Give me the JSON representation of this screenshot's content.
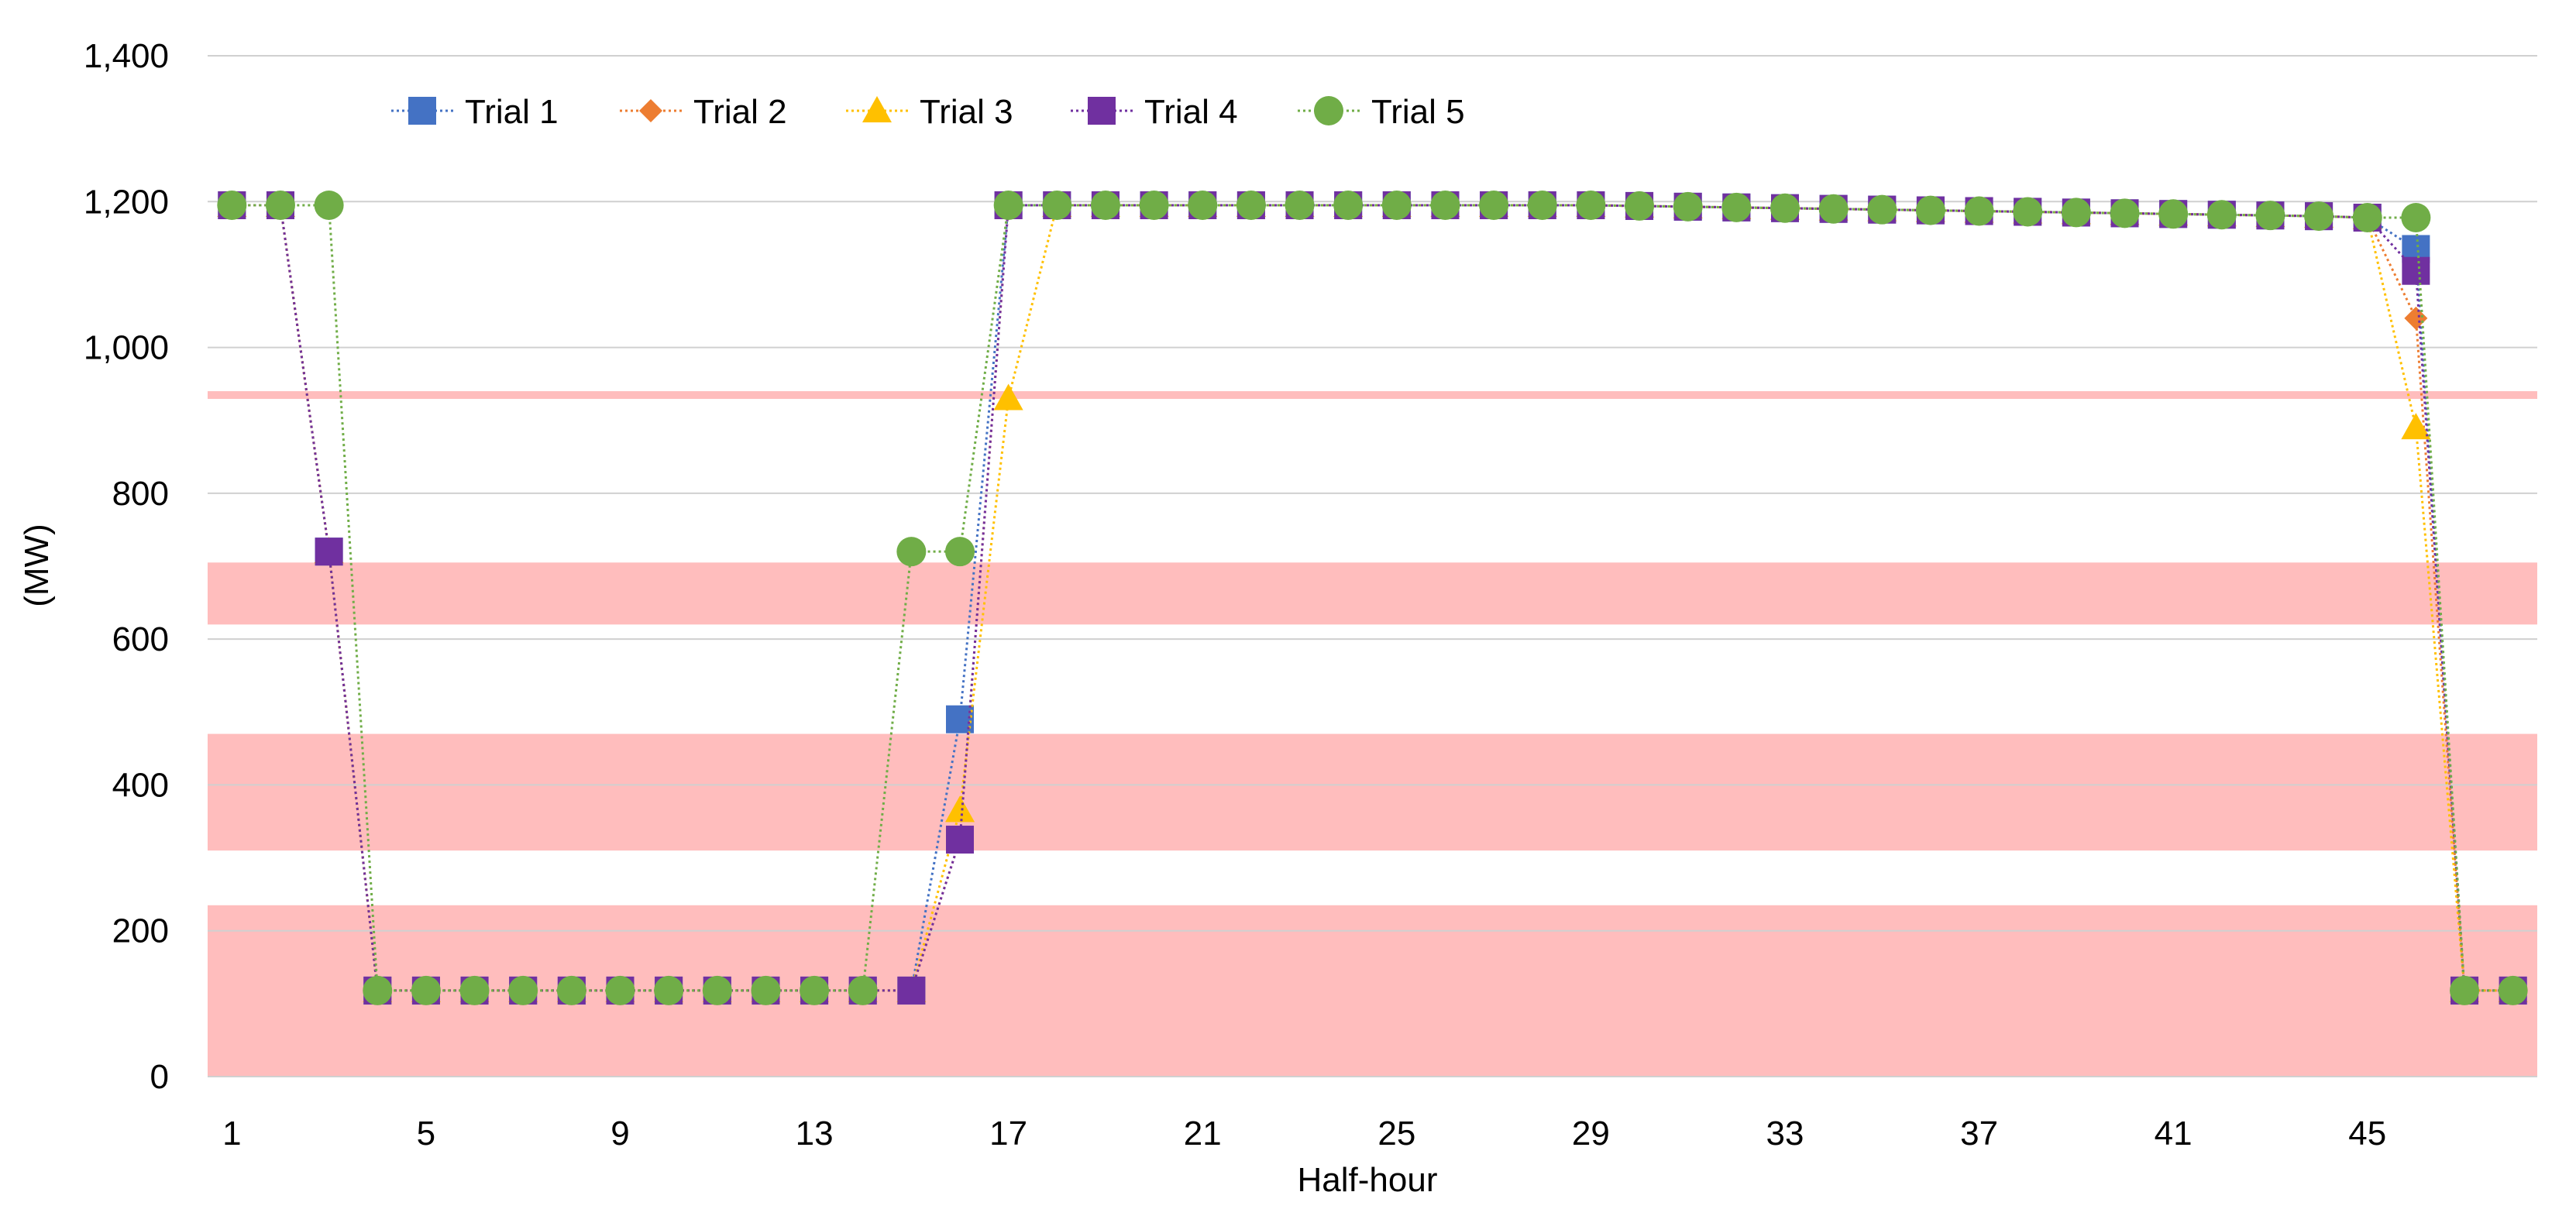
{
  "chart_data": {
    "type": "line",
    "xlabel": "Half-hour",
    "ylabel": "(MW)",
    "x": [
      1,
      2,
      3,
      4,
      5,
      6,
      7,
      8,
      9,
      10,
      11,
      12,
      13,
      14,
      15,
      16,
      17,
      18,
      19,
      20,
      21,
      22,
      23,
      24,
      25,
      26,
      27,
      28,
      29,
      30,
      31,
      32,
      33,
      34,
      35,
      36,
      37,
      38,
      39,
      40,
      41,
      42,
      43,
      44,
      45,
      46,
      47,
      48
    ],
    "x_tick_labels": [
      "1",
      "5",
      "9",
      "13",
      "17",
      "21",
      "25",
      "29",
      "33",
      "37",
      "41",
      "45"
    ],
    "x_tick_values": [
      1,
      5,
      9,
      13,
      17,
      21,
      25,
      29,
      33,
      37,
      41,
      45
    ],
    "xlim": [
      0.5,
      48.5
    ],
    "ylim": [
      0,
      1400
    ],
    "y_ticks": [
      0,
      200,
      400,
      600,
      800,
      1000,
      1200,
      1400
    ],
    "y_tick_labels": [
      "0",
      "200",
      "400",
      "600",
      "800",
      "1,000",
      "1,200",
      "1,400"
    ],
    "grid": true,
    "legend_position": "top-left",
    "shaded_bands": [
      {
        "from": 0,
        "to": 235
      },
      {
        "from": 310,
        "to": 470
      },
      {
        "from": 620,
        "to": 705
      },
      {
        "from": 930,
        "to": 940
      }
    ],
    "band_color": "#ffbdbd",
    "series": [
      {
        "name": "Trial 1",
        "color": "#4472c4",
        "marker": "square",
        "values": [
          1195,
          1195,
          720,
          118,
          118,
          118,
          118,
          118,
          118,
          118,
          118,
          118,
          118,
          118,
          118,
          490,
          1195,
          1195,
          1195,
          1195,
          1195,
          1195,
          1195,
          1195,
          1195,
          1195,
          1195,
          1195,
          1195,
          1194,
          1193,
          1192,
          1191,
          1190,
          1189,
          1188,
          1187,
          1186,
          1185,
          1184,
          1183,
          1182,
          1181,
          1180,
          1178,
          1135,
          118,
          118
        ]
      },
      {
        "name": "Trial 2",
        "color": "#ed7d31",
        "marker": "diamond",
        "values": [
          1195,
          1195,
          720,
          118,
          118,
          118,
          118,
          118,
          118,
          118,
          118,
          118,
          118,
          118,
          118,
          325,
          1195,
          1195,
          1195,
          1195,
          1195,
          1195,
          1195,
          1195,
          1195,
          1195,
          1195,
          1195,
          1195,
          1194,
          1193,
          1192,
          1191,
          1190,
          1189,
          1188,
          1187,
          1186,
          1185,
          1184,
          1183,
          1182,
          1181,
          1180,
          1178,
          1040,
          118,
          118
        ]
      },
      {
        "name": "Trial 3",
        "color": "#ffc000",
        "marker": "triangle",
        "values": [
          1195,
          1195,
          720,
          118,
          118,
          118,
          118,
          118,
          118,
          118,
          118,
          118,
          118,
          118,
          118,
          365,
          930,
          1195,
          1195,
          1195,
          1195,
          1195,
          1195,
          1195,
          1195,
          1195,
          1195,
          1195,
          1195,
          1194,
          1193,
          1192,
          1191,
          1190,
          1189,
          1188,
          1187,
          1186,
          1185,
          1184,
          1183,
          1182,
          1181,
          1180,
          1178,
          890,
          118,
          118
        ]
      },
      {
        "name": "Trial 4",
        "color": "#7030a0",
        "marker": "square",
        "values": [
          1195,
          1195,
          720,
          118,
          118,
          118,
          118,
          118,
          118,
          118,
          118,
          118,
          118,
          118,
          118,
          325,
          1195,
          1195,
          1195,
          1195,
          1195,
          1195,
          1195,
          1195,
          1195,
          1195,
          1195,
          1195,
          1195,
          1194,
          1193,
          1192,
          1191,
          1190,
          1189,
          1188,
          1187,
          1186,
          1185,
          1184,
          1183,
          1182,
          1181,
          1180,
          1178,
          1105,
          118,
          118
        ]
      },
      {
        "name": "Trial 5",
        "color": "#70ad47",
        "marker": "circle",
        "values": [
          1195,
          1195,
          1195,
          118,
          118,
          118,
          118,
          118,
          118,
          118,
          118,
          118,
          118,
          118,
          720,
          720,
          1195,
          1195,
          1195,
          1195,
          1195,
          1195,
          1195,
          1195,
          1195,
          1195,
          1195,
          1195,
          1195,
          1194,
          1193,
          1192,
          1191,
          1190,
          1189,
          1188,
          1187,
          1186,
          1185,
          1184,
          1183,
          1182,
          1181,
          1180,
          1178,
          1178,
          118,
          118
        ]
      }
    ]
  }
}
